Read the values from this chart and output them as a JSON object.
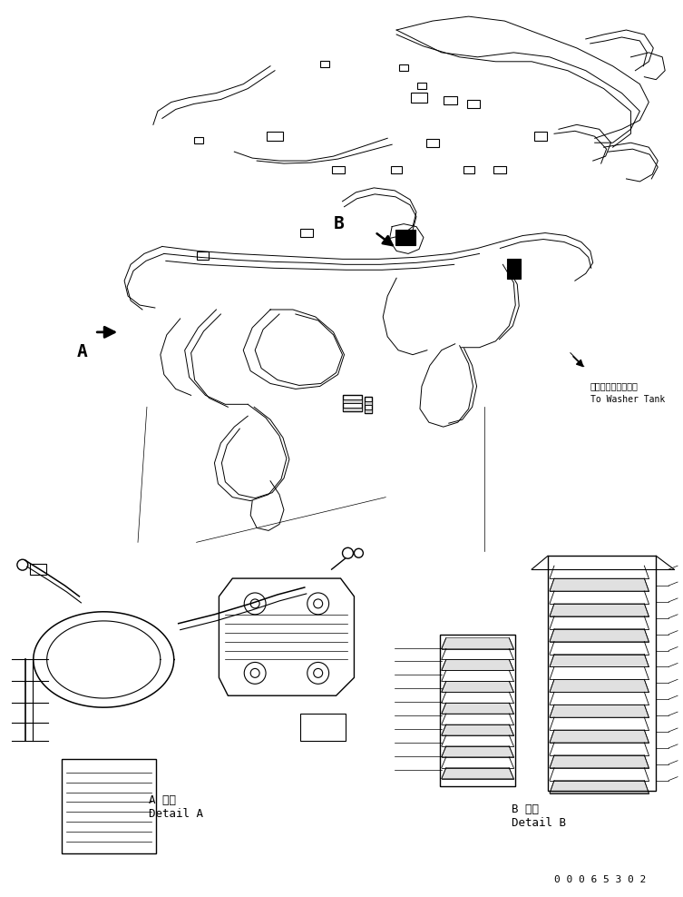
{
  "bg_color": "#ffffff",
  "fig_width": 7.53,
  "fig_height": 9.88,
  "dpi": 100,
  "label_A": "A",
  "label_B": "B",
  "detail_a_jp": "A 詳細",
  "detail_a_en": "Detail A",
  "detail_b_jp": "B 詳細",
  "detail_b_en": "Detail B",
  "washer_jp": "ウォッシャタンクヘ",
  "washer_en": "To Washer Tank",
  "part_number": "0 0 0 6 5 3 0 2",
  "line_color": "#000000",
  "text_color": "#000000",
  "font_size_label": 14,
  "font_size_detail": 9,
  "font_size_small": 7,
  "font_size_partnum": 8
}
